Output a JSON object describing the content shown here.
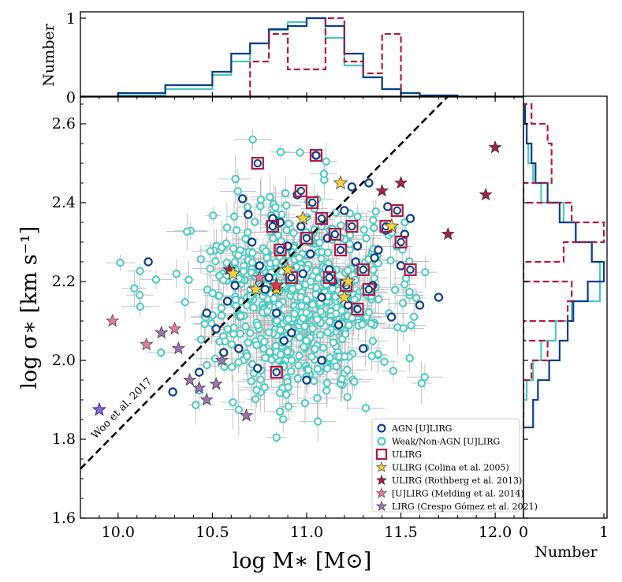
{
  "colors": {
    "agn": "#0b3d8c",
    "weak": "#48c9c0",
    "ulirg": "#b5173f",
    "hist_agn": "#0b3d8c",
    "hist_weak": "#48c9c0",
    "hist_ulirg": "#b5173f",
    "colina": "#f7d23e",
    "rothberg": "#a51f4a",
    "melding": "#e87a9c",
    "crespo": "#9a74b0",
    "errorbar": "#b4b4b4"
  },
  "labels": {
    "xlabel": "log M∗ [M⊙]",
    "ylabel": "log σ∗ [km s⁻¹]",
    "top_ylabel": "Number",
    "right_xlabel": "Number",
    "woo": "Woo et al. 2017"
  },
  "legend": [
    {
      "label": "AGN [U]LIRG",
      "marker": "circle",
      "color_key": "agn"
    },
    {
      "label": "Weak/Non-AGN [U]LIRG",
      "marker": "circle",
      "color_key": "weak"
    },
    {
      "label": "ULIRG",
      "marker": "square",
      "color_key": "ulirg"
    },
    {
      "label": "ULIRG (Colina et al. 2005)",
      "marker": "star",
      "color_key": "colina"
    },
    {
      "label": "ULIRG (Rothberg et al. 2013)",
      "marker": "star",
      "color_key": "rothberg"
    },
    {
      "label": "[U]LIRG (Melding et al. 2014)",
      "marker": "star",
      "color_key": "melding"
    },
    {
      "label": "LIRG (Crespo Gómez et al. 2021)",
      "marker": "star",
      "color_key": "crespo"
    }
  ],
  "chart_data": {
    "type": "scatter",
    "xlabel": "log M∗ [M⊙]",
    "ylabel": "log σ∗ [km s⁻¹]",
    "xlim": [
      9.8,
      12.15
    ],
    "ylim": [
      1.6,
      2.67
    ],
    "xticks": [
      10.0,
      10.5,
      11.0,
      11.5,
      12.0
    ],
    "yticks": [
      1.6,
      1.8,
      2.0,
      2.2,
      2.4,
      2.6
    ],
    "legend_position": "lower-right",
    "relation_line": {
      "name": "Woo et al. 2017",
      "x": [
        9.8,
        11.75
      ],
      "y": [
        1.725,
        2.67
      ]
    },
    "weak_cloud": {
      "count": 620,
      "x_mean": 10.95,
      "x_sd": 0.27,
      "y_mean": 2.16,
      "y_sd": 0.125
    },
    "agn_points": {
      "x": [
        10.16,
        10.43,
        10.52,
        10.58,
        10.62,
        10.66,
        10.71,
        10.75,
        10.8,
        10.82,
        10.84,
        10.86,
        10.88,
        10.9,
        10.95,
        10.98,
        11.02,
        11.05,
        11.08,
        11.11,
        11.14,
        11.17,
        11.2,
        11.22,
        11.26,
        11.3,
        11.33,
        11.35,
        11.38,
        11.42,
        11.45,
        11.5,
        11.52,
        11.55,
        11.6,
        11.7,
        11.08,
        11.0,
        10.92,
        10.78,
        10.69,
        10.56,
        10.47,
        11.24,
        11.36,
        10.29,
        11.43,
        11.27,
        10.74,
        10.97,
        11.12,
        10.64
      ],
      "y": [
        2.25,
        1.97,
        2.08,
        2.15,
        2.19,
        2.41,
        2.3,
        2.24,
        2.21,
        2.36,
        2.12,
        2.35,
        2.05,
        2.29,
        2.42,
        2.22,
        2.27,
        2.52,
        2.16,
        2.31,
        2.2,
        2.09,
        2.38,
        2.14,
        2.25,
        2.03,
        2.45,
        2.19,
        2.28,
        2.33,
        2.11,
        2.24,
        2.32,
        2.36,
        2.14,
        2.16,
        2.0,
        1.95,
        2.07,
        2.18,
        2.37,
        2.02,
        2.12,
        2.44,
        2.26,
        1.92,
        2.39,
        2.29,
        1.98,
        2.34,
        2.23,
        2.03
      ]
    },
    "ulirg_points": {
      "x": [
        10.74,
        10.82,
        10.84,
        10.86,
        10.92,
        10.97,
        11.0,
        11.03,
        11.05,
        11.08,
        11.12,
        11.15,
        11.18,
        11.21,
        11.24,
        11.27,
        11.3,
        11.33,
        11.42,
        11.48,
        11.5,
        11.55
      ],
      "y": [
        2.5,
        2.34,
        1.97,
        2.28,
        2.21,
        2.43,
        2.31,
        2.4,
        2.52,
        2.36,
        2.21,
        2.32,
        2.28,
        2.19,
        2.34,
        2.13,
        2.23,
        2.18,
        2.34,
        2.38,
        2.3,
        2.23
      ]
    },
    "colina_stars": {
      "x": [
        10.61,
        10.73,
        10.84,
        10.9,
        10.98,
        11.18,
        11.22,
        11.2,
        11.45,
        10.84
      ],
      "y": [
        2.22,
        2.18,
        2.18,
        2.23,
        2.36,
        2.45,
        2.2,
        2.16,
        2.34,
        2.19
      ]
    },
    "rothberg_stars": {
      "x": [
        10.59,
        11.4,
        11.5,
        11.75,
        11.95,
        12.0
      ],
      "y": [
        2.23,
        2.43,
        2.45,
        2.32,
        2.42,
        2.54
      ]
    },
    "melding_stars": {
      "x": [
        9.97,
        10.15,
        10.3,
        10.75
      ],
      "y": [
        2.1,
        2.04,
        2.08,
        2.21
      ]
    },
    "crespo_stars": {
      "x": [
        9.9,
        10.23,
        10.32,
        10.38,
        10.43,
        10.47,
        10.52,
        10.55,
        10.68
      ],
      "y": [
        1.875,
        2.07,
        2.03,
        1.95,
        1.93,
        1.9,
        1.94,
        2.0,
        1.86
      ]
    },
    "highlight_star": {
      "x": 10.84,
      "y": 2.19,
      "color": "#e8334a"
    },
    "top_histogram": {
      "xlabel": "log M∗ [M⊙]",
      "ylabel": "Number",
      "ylim": [
        0,
        1
      ],
      "yticks": [
        0,
        1
      ],
      "bin_edges": [
        10.0,
        10.25,
        10.5,
        10.6,
        10.7,
        10.8,
        10.9,
        11.0,
        11.1,
        11.2,
        11.3,
        11.4,
        11.5,
        11.6,
        11.8
      ],
      "series": [
        {
          "name": "AGN [U]LIRG",
          "values": [
            0.05,
            0.15,
            0.32,
            0.55,
            0.68,
            0.86,
            0.9,
            1.0,
            0.9,
            0.55,
            0.25,
            0.1,
            0.05,
            0.02
          ]
        },
        {
          "name": "Weak/Non-AGN [U]LIRG",
          "values": [
            0.02,
            0.1,
            0.28,
            0.45,
            0.68,
            0.85,
            0.95,
            1.0,
            0.75,
            0.4,
            0.25,
            0.1,
            0.05,
            0.0
          ]
        },
        {
          "name": "ULIRG",
          "values": [
            0.0,
            0.0,
            0.0,
            0.0,
            0.45,
            0.8,
            0.35,
            0.35,
            1.0,
            0.45,
            0.3,
            0.8,
            0.0,
            0.0
          ]
        }
      ]
    },
    "right_histogram": {
      "xlabel": "Number",
      "ylabel": "log σ∗ [km s⁻¹]",
      "xlim": [
        0,
        1
      ],
      "xticks": [
        0,
        1
      ],
      "bin_edges": [
        1.83,
        1.9,
        1.95,
        2.0,
        2.05,
        2.1,
        2.15,
        2.2,
        2.25,
        2.3,
        2.35,
        2.4,
        2.45,
        2.5,
        2.55,
        2.6,
        2.65
      ],
      "series": [
        {
          "name": "AGN [U]LIRG",
          "values": [
            0.12,
            0.18,
            0.32,
            0.45,
            0.55,
            0.62,
            0.8,
            1.0,
            0.85,
            0.65,
            0.45,
            0.3,
            0.15,
            0.1,
            0.04,
            0.02
          ]
        },
        {
          "name": "Weak/Non-AGN [U]LIRG",
          "values": [
            0.0,
            0.04,
            0.12,
            0.22,
            0.4,
            0.6,
            0.95,
            0.95,
            0.85,
            0.65,
            0.5,
            0.22,
            0.12,
            0.06,
            0.04,
            0.02
          ]
        },
        {
          "name": "ULIRG",
          "values": [
            0.0,
            0.0,
            0.1,
            0.3,
            0.0,
            0.55,
            0.6,
            0.0,
            0.5,
            1.0,
            0.6,
            0.0,
            0.35,
            0.35,
            0.3,
            0.1
          ]
        }
      ]
    }
  }
}
